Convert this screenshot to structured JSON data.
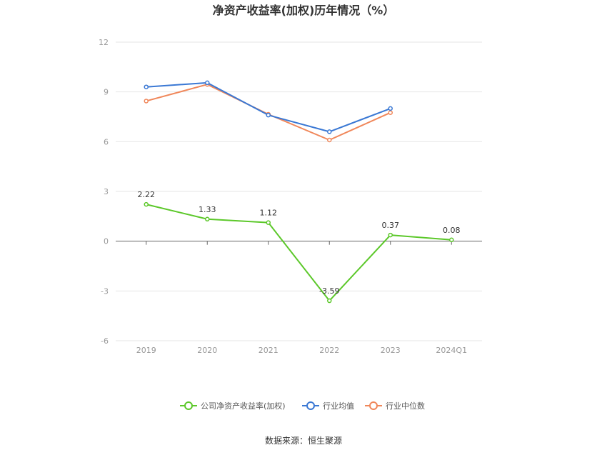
{
  "chart_data": {
    "type": "line",
    "title": "净资产收益率(加权)历年情况（%）",
    "categories": [
      "2019",
      "2020",
      "2021",
      "2022",
      "2023",
      "2024Q1"
    ],
    "y_ticks": [
      "12",
      "9",
      "6",
      "3",
      "0",
      "-3",
      "-6"
    ],
    "ylim": [
      -6,
      12
    ],
    "grid": true,
    "legend_position": "bottom",
    "series": [
      {
        "name": "公司净资产收益率(加权)",
        "color": "#5cc82a",
        "values": [
          2.22,
          1.33,
          1.12,
          -3.59,
          0.37,
          0.08
        ],
        "labels": [
          "2.22",
          "1.33",
          "1.12",
          "-3.59",
          "0.37",
          "0.08"
        ]
      },
      {
        "name": "行业均值",
        "color": "#3a78d4",
        "values": [
          9.3,
          9.55,
          7.6,
          6.6,
          8.0,
          null
        ]
      },
      {
        "name": "行业中位数",
        "color": "#f0875a",
        "values": [
          8.45,
          9.45,
          7.65,
          6.1,
          7.75,
          null
        ]
      }
    ],
    "source": "数据来源：恒生聚源"
  }
}
